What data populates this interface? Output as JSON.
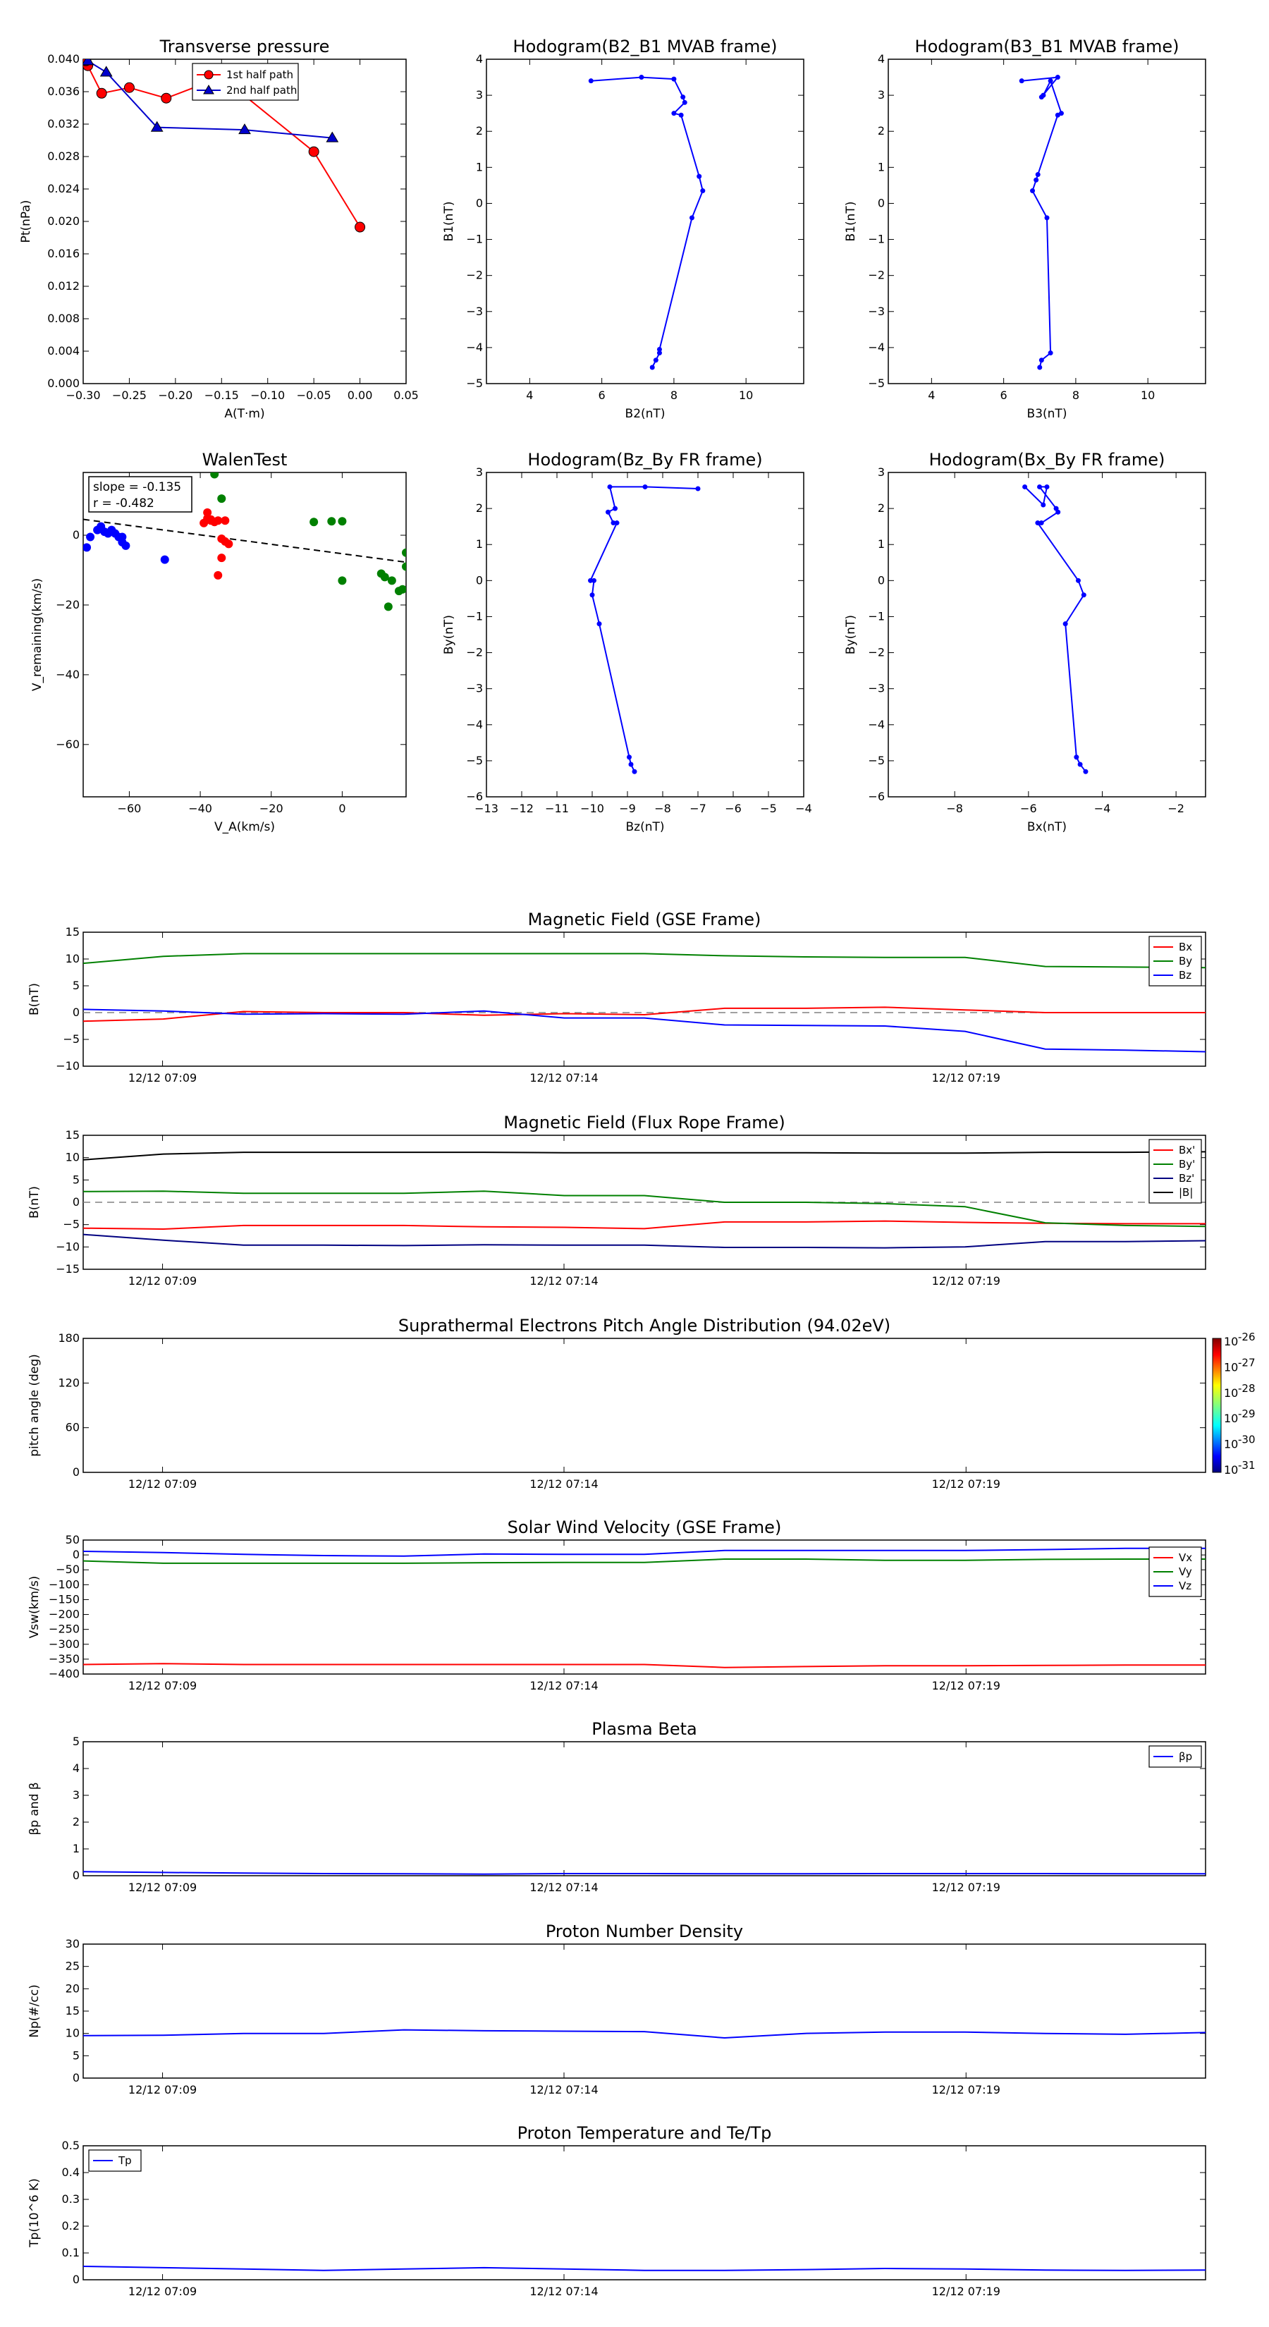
{
  "colors": {
    "red": "#ff0000",
    "green": "#008000",
    "blue": "#0000ff",
    "black": "#000000",
    "gray": "#808080"
  },
  "time_ticks": [
    "12/12 07:09",
    "12/12 07:14",
    "12/12 07:19"
  ],
  "chart_data": [
    {
      "id": "transverse-pressure",
      "type": "scatter",
      "title": "Transverse pressure",
      "xlabel": "A(T·m)",
      "ylabel": "Pt(nPa)",
      "xlim": [
        -0.3,
        0.05
      ],
      "ylim": [
        0,
        0.04
      ],
      "xticks": [
        -0.3,
        -0.25,
        -0.2,
        -0.15,
        -0.1,
        -0.05,
        0.0,
        0.05
      ],
      "xtick_labels": [
        "−0.30",
        "−0.25",
        "−0.20",
        "−0.15",
        "−0.10",
        "−0.05",
        "0.00",
        "0.05"
      ],
      "yticks": [
        0,
        0.004,
        0.008,
        0.012,
        0.016,
        0.02,
        0.024,
        0.028,
        0.032,
        0.036,
        0.04
      ],
      "ytick_labels": [
        "0.000",
        "0.004",
        "0.008",
        "0.012",
        "0.016",
        "0.020",
        "0.024",
        "0.028",
        "0.032",
        "0.036",
        "0.040"
      ],
      "legend": [
        "1st half path",
        "2nd half path"
      ],
      "series": [
        {
          "name": "1st half path",
          "color": "#ff0000",
          "marker": "circle",
          "x": [
            0.0,
            -0.05,
            -0.15,
            -0.21,
            -0.25,
            -0.28,
            -0.295,
            -0.297
          ],
          "y": [
            0.0193,
            0.0286,
            0.0378,
            0.0352,
            0.0365,
            0.0358,
            0.0392,
            0.0398
          ]
        },
        {
          "name": "2nd half path",
          "color": "#0000cc",
          "marker": "triangle",
          "x": [
            -0.295,
            -0.275,
            -0.22,
            -0.125,
            -0.03
          ],
          "y": [
            0.0398,
            0.0384,
            0.0316,
            0.0313,
            0.0303
          ]
        }
      ]
    },
    {
      "id": "hodogram-b2-b1",
      "type": "line",
      "title": "Hodogram(B2_B1 MVAB frame)",
      "xlabel": "B2(nT)",
      "ylabel": "B1(nT)",
      "xlim": [
        2.8,
        11.6
      ],
      "ylim": [
        -5,
        4
      ],
      "xticks": [
        4,
        6,
        8,
        10
      ],
      "yticks": [
        -5,
        -4,
        -3,
        -2,
        -1,
        0,
        1,
        2,
        3,
        4
      ],
      "series": [
        {
          "color": "#0000ff",
          "x": [
            7.4,
            7.5,
            7.6,
            7.6,
            8.5,
            8.8,
            8.7,
            8.2,
            8.0,
            8.3,
            8.25,
            8.0,
            7.1,
            5.7
          ],
          "y": [
            -4.55,
            -4.35,
            -4.15,
            -4.05,
            -0.4,
            0.35,
            0.75,
            2.45,
            2.5,
            2.8,
            2.95,
            3.45,
            3.5,
            3.4
          ]
        }
      ]
    },
    {
      "id": "hodogram-b3-b1",
      "type": "line",
      "title": "Hodogram(B3_B1 MVAB frame)",
      "xlabel": "B3(nT)",
      "ylabel": "B1(nT)",
      "xlim": [
        2.8,
        11.6
      ],
      "ylim": [
        -5,
        4
      ],
      "xticks": [
        4,
        6,
        8,
        10
      ],
      "yticks": [
        -5,
        -4,
        -3,
        -2,
        -1,
        0,
        1,
        2,
        3,
        4
      ],
      "series": [
        {
          "color": "#0000ff",
          "x": [
            7.0,
            7.05,
            7.3,
            7.2,
            6.8,
            6.9,
            6.95,
            7.5,
            7.6,
            7.3,
            7.1,
            7.05,
            7.5,
            6.5
          ],
          "y": [
            -4.55,
            -4.35,
            -4.15,
            -0.4,
            0.35,
            0.65,
            0.8,
            2.45,
            2.5,
            3.4,
            3.0,
            2.95,
            3.5,
            3.4
          ]
        }
      ]
    },
    {
      "id": "walen-test",
      "type": "scatter",
      "title": "WalenTest",
      "xlabel": "V_A(km/s)",
      "ylabel": "V_remaining(km/s)",
      "xlim": [
        -73,
        18
      ],
      "ylim": [
        -75,
        18
      ],
      "xticks": [
        -60,
        -40,
        -20,
        0
      ],
      "yticks": [
        -60,
        -40,
        -20,
        0
      ],
      "annotation": [
        "slope = -0.135",
        "r = -0.482"
      ],
      "fit_line": {
        "slope": -0.135,
        "intercept": -5.3,
        "color": "#000000",
        "style": "dashed"
      },
      "series": [
        {
          "color": "#0000ff",
          "x": [
            -72,
            -71,
            -69,
            -68,
            -67,
            -66,
            -65,
            -64,
            -63,
            -62,
            -62,
            -61,
            -50
          ],
          "y": [
            -3.5,
            -0.5,
            1.5,
            2.5,
            1,
            0.5,
            1.5,
            0.5,
            -0.5,
            -2,
            -0.5,
            -3,
            -7
          ]
        },
        {
          "color": "#ff0000",
          "x": [
            -39,
            -38,
            -37,
            -36,
            -35,
            -34,
            -33,
            -32,
            -33,
            -38,
            -37,
            -35,
            -34
          ],
          "y": [
            3.5,
            6.5,
            4.5,
            3.8,
            4.2,
            -1,
            -1.8,
            -2.5,
            4.2,
            4.8,
            4.2,
            -11.5,
            -6.5
          ]
        },
        {
          "color": "#008000",
          "x": [
            -36,
            -34,
            -8,
            -3,
            0,
            0,
            11,
            12,
            13,
            14,
            16,
            17,
            18,
            18
          ],
          "y": [
            17.5,
            10.5,
            3.8,
            4,
            4,
            -13,
            -11,
            -12,
            -20.5,
            -13,
            -16,
            -15.5,
            -5,
            -9
          ]
        }
      ]
    },
    {
      "id": "hodogram-bz-by",
      "type": "line",
      "title": "Hodogram(Bz_By FR frame)",
      "xlabel": "Bz(nT)",
      "ylabel": "By(nT)",
      "xlim": [
        -13,
        -4
      ],
      "ylim": [
        -6,
        3
      ],
      "xticks": [
        -13,
        -12,
        -11,
        -10,
        -9,
        -8,
        -7,
        -6,
        -5,
        -4
      ],
      "yticks": [
        -6,
        -5,
        -4,
        -3,
        -2,
        -1,
        0,
        1,
        2,
        3
      ],
      "series": [
        {
          "color": "#0000ff",
          "x": [
            -8.8,
            -8.9,
            -8.95,
            -9.8,
            -10.0,
            -9.95,
            -10.05,
            -9.3,
            -9.4,
            -9.55,
            -9.35,
            -9.5,
            -8.5,
            -7.0
          ],
          "y": [
            -5.3,
            -5.1,
            -4.9,
            -1.2,
            -0.4,
            0.0,
            0.0,
            1.6,
            1.6,
            1.9,
            2.0,
            2.6,
            2.6,
            2.55
          ]
        }
      ]
    },
    {
      "id": "hodogram-bx-by",
      "type": "line",
      "title": "Hodogram(Bx_By FR frame)",
      "xlabel": "Bx(nT)",
      "ylabel": "By(nT)",
      "xlim": [
        -9.8,
        -1.2
      ],
      "ylim": [
        -6,
        3
      ],
      "xticks": [
        -8,
        -6,
        -4,
        -2
      ],
      "yticks": [
        -6,
        -5,
        -4,
        -3,
        -2,
        -1,
        0,
        1,
        2,
        3
      ],
      "series": [
        {
          "color": "#0000ff",
          "x": [
            -4.45,
            -4.6,
            -4.7,
            -5.0,
            -4.5,
            -4.65,
            -5.75,
            -5.65,
            -5.2,
            -5.25,
            -5.7,
            -5.5,
            -5.6,
            -6.1
          ],
          "y": [
            -5.3,
            -5.1,
            -4.9,
            -1.2,
            -0.4,
            0.0,
            1.6,
            1.6,
            1.9,
            2.0,
            2.6,
            2.6,
            2.1,
            2.6
          ]
        }
      ]
    },
    {
      "id": "magnetic-field-gse",
      "type": "line",
      "title": "Magnetic Field (GSE Frame)",
      "ylabel": "B(nT)",
      "ylim": [
        -10,
        15
      ],
      "yticks": [
        -10,
        -5,
        0,
        5,
        10,
        15
      ],
      "zero_line": true,
      "legend": [
        "Bx",
        "By",
        "Bz"
      ],
      "legend_position": "top-right",
      "x": [
        0,
        1,
        2,
        3,
        4,
        5,
        6,
        7,
        8,
        9,
        10,
        11,
        12,
        13,
        14
      ],
      "series": [
        {
          "name": "Bx",
          "color": "#ff0000",
          "values": [
            -1.6,
            -1.2,
            0.2,
            0.0,
            0.0,
            -0.5,
            -0.2,
            -0.4,
            0.8,
            0.8,
            1.0,
            0.5,
            0.0,
            0.0,
            0.0
          ]
        },
        {
          "name": "By",
          "color": "#008000",
          "values": [
            9.2,
            10.5,
            11.0,
            11.0,
            11.0,
            11.0,
            11.0,
            11.0,
            10.6,
            10.4,
            10.3,
            10.3,
            8.6,
            8.5,
            8.4
          ]
        },
        {
          "name": "Bz",
          "color": "#0000ff",
          "values": [
            0.6,
            0.3,
            -0.3,
            -0.2,
            -0.3,
            0.3,
            -1.0,
            -1.0,
            -2.3,
            -2.4,
            -2.5,
            -3.5,
            -6.8,
            -7.0,
            -7.3
          ]
        }
      ]
    },
    {
      "id": "magnetic-field-fr",
      "type": "line",
      "title": "Magnetic Field (Flux Rope Frame)",
      "ylabel": "B(nT)",
      "ylim": [
        -15,
        15
      ],
      "yticks": [
        -15,
        -10,
        -5,
        0,
        5,
        10,
        15
      ],
      "zero_line": true,
      "legend": [
        "Bx'",
        "By'",
        "Bz'",
        "|B|"
      ],
      "legend_position": "top-right",
      "x": [
        0,
        1,
        2,
        3,
        4,
        5,
        6,
        7,
        8,
        9,
        10,
        11,
        12,
        13,
        14
      ],
      "series": [
        {
          "name": "Bx'",
          "color": "#ff0000",
          "values": [
            -5.8,
            -6.0,
            -5.2,
            -5.2,
            -5.2,
            -5.5,
            -5.6,
            -5.9,
            -4.4,
            -4.4,
            -4.2,
            -4.5,
            -4.7,
            -4.8,
            -4.8
          ]
        },
        {
          "name": "By'",
          "color": "#008000",
          "values": [
            2.4,
            2.5,
            2.0,
            2.0,
            2.0,
            2.5,
            1.5,
            1.5,
            0.0,
            0.0,
            -0.3,
            -1.0,
            -4.6,
            -5.2,
            -5.4
          ]
        },
        {
          "name": "Bz'",
          "color": "#000080",
          "values": [
            -7.2,
            -8.5,
            -9.6,
            -9.6,
            -9.7,
            -9.5,
            -9.6,
            -9.6,
            -10.1,
            -10.1,
            -10.2,
            -10.0,
            -8.8,
            -8.8,
            -8.6
          ]
        },
        {
          "name": "|B|",
          "color": "#000000",
          "values": [
            9.5,
            10.8,
            11.2,
            11.2,
            11.2,
            11.2,
            11.1,
            11.1,
            11.1,
            11.1,
            11.0,
            11.0,
            11.2,
            11.2,
            11.3
          ]
        }
      ]
    },
    {
      "id": "electron-pad",
      "type": "heatmap",
      "title": "Suprathermal Electrons Pitch Angle Distribution (94.02eV)",
      "ylabel": "pitch angle (deg)",
      "ylim": [
        0,
        180
      ],
      "yticks": [
        0,
        60,
        120,
        180
      ],
      "colorbar_ticks": [
        "10",
        "10",
        "10",
        "10",
        "10",
        "10"
      ],
      "colorbar_exponents": [
        "-26",
        "-27",
        "-28",
        "-29",
        "-30",
        "-31"
      ],
      "values": []
    },
    {
      "id": "solar-wind-velocity",
      "type": "line",
      "title": "Solar Wind Velocity (GSE Frame)",
      "ylabel": "Vsw(km/s)",
      "ylim": [
        -400,
        50
      ],
      "yticks": [
        -400,
        -350,
        -300,
        -250,
        -200,
        -150,
        -100,
        -50,
        0,
        50
      ],
      "legend": [
        "Vx",
        "Vy",
        "Vz"
      ],
      "legend_position": "right",
      "x": [
        0,
        1,
        2,
        3,
        4,
        5,
        6,
        7,
        8,
        9,
        10,
        11,
        12,
        13,
        14
      ],
      "series": [
        {
          "name": "Vx",
          "color": "#ff0000",
          "values": [
            -368,
            -365,
            -368,
            -368,
            -368,
            -368,
            -368,
            -368,
            -378,
            -375,
            -372,
            -372,
            -371,
            -370,
            -370
          ]
        },
        {
          "name": "Vy",
          "color": "#008000",
          "values": [
            -20,
            -28,
            -28,
            -28,
            -28,
            -26,
            -25,
            -25,
            -14,
            -14,
            -18,
            -18,
            -15,
            -14,
            -14
          ]
        },
        {
          "name": "Vz",
          "color": "#0000ff",
          "values": [
            12,
            8,
            2,
            -2,
            -4,
            3,
            2,
            2,
            15,
            15,
            15,
            15,
            18,
            22,
            22
          ]
        }
      ]
    },
    {
      "id": "plasma-beta",
      "type": "line",
      "title": "Plasma Beta",
      "ylabel": "βp and β",
      "ylim": [
        0,
        5
      ],
      "yticks": [
        0,
        1,
        2,
        3,
        4,
        5
      ],
      "legend": [
        "βp"
      ],
      "legend_position": "top-right",
      "x": [
        0,
        1,
        2,
        3,
        4,
        5,
        6,
        7,
        8,
        9,
        10,
        11,
        12,
        13,
        14
      ],
      "series": [
        {
          "name": "βp",
          "color": "#0000ff",
          "values": [
            0.15,
            0.12,
            0.1,
            0.08,
            0.07,
            0.06,
            0.08,
            0.08,
            0.07,
            0.07,
            0.08,
            0.08,
            0.08,
            0.07,
            0.07
          ]
        }
      ]
    },
    {
      "id": "proton-density",
      "type": "line",
      "title": "Proton Number Density",
      "ylabel": "Np(#/cc)",
      "ylim": [
        0,
        30
      ],
      "yticks": [
        0,
        5,
        10,
        15,
        20,
        25,
        30
      ],
      "x": [
        0,
        1,
        2,
        3,
        4,
        5,
        6,
        7,
        8,
        9,
        10,
        11,
        12,
        13,
        14
      ],
      "series": [
        {
          "name": "Np",
          "color": "#0000ff",
          "values": [
            9.5,
            9.6,
            10.0,
            10.0,
            10.8,
            10.6,
            10.5,
            10.4,
            9.0,
            10.0,
            10.3,
            10.3,
            10.0,
            9.8,
            10.2
          ]
        }
      ]
    },
    {
      "id": "proton-temperature",
      "type": "line",
      "title": "Proton Temperature and Te/Tp",
      "ylabel": "Tp(10^6 K)",
      "ylim": [
        0,
        0.5
      ],
      "yticks": [
        0.0,
        0.1,
        0.2,
        0.3,
        0.4,
        0.5
      ],
      "legend": [
        "Tp"
      ],
      "legend_position": "top-left",
      "x": [
        0,
        1,
        2,
        3,
        4,
        5,
        6,
        7,
        8,
        9,
        10,
        11,
        12,
        13,
        14
      ],
      "series": [
        {
          "name": "Tp",
          "color": "#0000ff",
          "values": [
            0.05,
            0.045,
            0.04,
            0.035,
            0.04,
            0.045,
            0.04,
            0.035,
            0.035,
            0.038,
            0.042,
            0.04,
            0.036,
            0.035,
            0.036
          ]
        }
      ]
    }
  ]
}
